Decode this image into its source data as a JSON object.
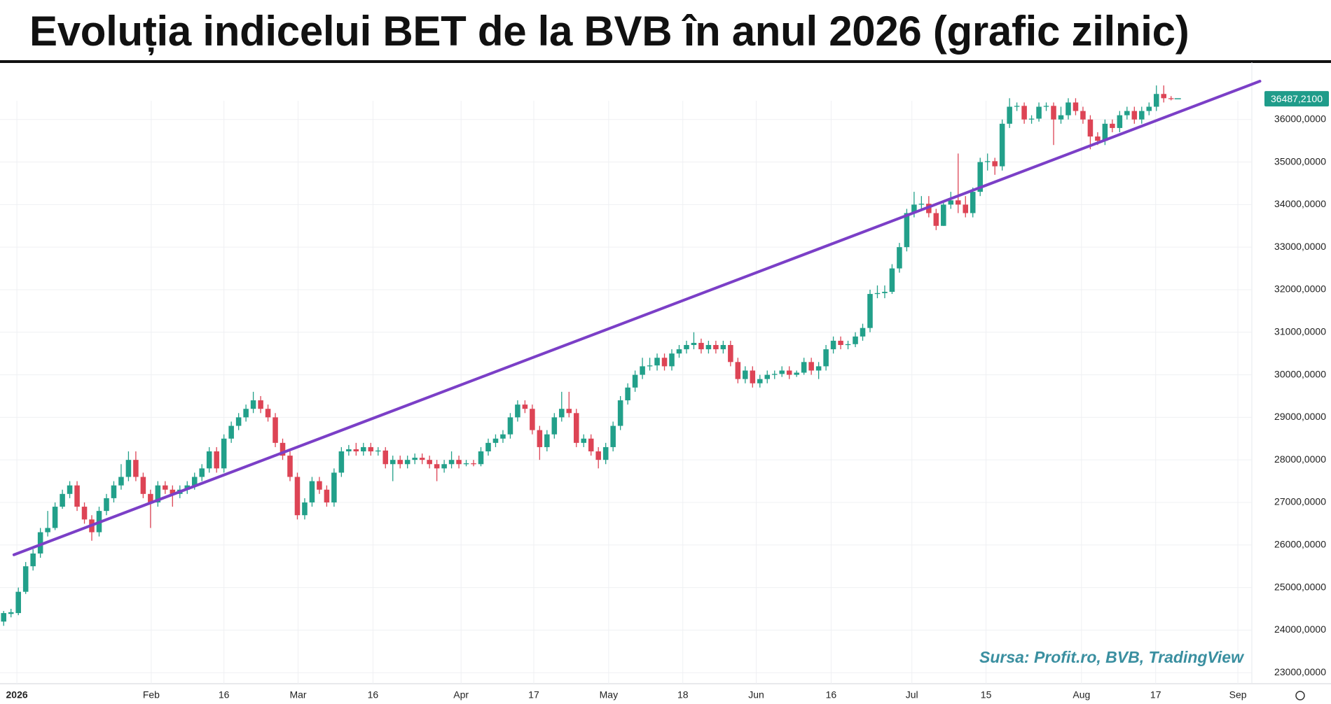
{
  "chart_data": {
    "type": "candlestick",
    "title": "Evoluția indicelui BET de la BVB în anul 2026 (grafic zilnic)",
    "annotation": "Sursa: Profit.ro, BVB, TradingView",
    "up_color": "#22a08a",
    "down_color": "#dd4455",
    "grid": true,
    "xlim": [
      -0.5,
      170
    ],
    "xticks": [
      {
        "value": 1.8,
        "label": "2026"
      },
      {
        "value": 20.1,
        "label": "Feb"
      },
      {
        "value": 30.0,
        "label": "16"
      },
      {
        "value": 40.1,
        "label": "Mar"
      },
      {
        "value": 50.3,
        "label": "16"
      },
      {
        "value": 62.3,
        "label": "Apr"
      },
      {
        "value": 72.2,
        "label": "17"
      },
      {
        "value": 82.4,
        "label": "May"
      },
      {
        "value": 92.5,
        "label": "18"
      },
      {
        "value": 102.5,
        "label": "Jun"
      },
      {
        "value": 112.7,
        "label": "16"
      },
      {
        "value": 123.7,
        "label": "Jul"
      },
      {
        "value": 133.8,
        "label": "15"
      },
      {
        "value": 146.8,
        "label": "Aug"
      },
      {
        "value": 156.9,
        "label": "17"
      },
      {
        "value": 168.1,
        "label": "Sep"
      }
    ],
    "ylim": [
      22740,
      37180
    ],
    "yticks": [
      {
        "value": 23000,
        "label": "23000,0000"
      },
      {
        "value": 24000,
        "label": "24000,0000"
      },
      {
        "value": 25000,
        "label": "25000,0000"
      },
      {
        "value": 26000,
        "label": "26000,0000"
      },
      {
        "value": 27000,
        "label": "27000,0000"
      },
      {
        "value": 28000,
        "label": "28000,0000"
      },
      {
        "value": 29000,
        "label": "29000,0000"
      },
      {
        "value": 30000,
        "label": "30000,0000"
      },
      {
        "value": 31000,
        "label": "31000,0000"
      },
      {
        "value": 32000,
        "label": "32000,0000"
      },
      {
        "value": 33000,
        "label": "33000,0000"
      },
      {
        "value": 34000,
        "label": "34000,0000"
      },
      {
        "value": 35000,
        "label": "35000,0000"
      },
      {
        "value": 36000,
        "label": "36000,0000"
      }
    ],
    "last_price_label": "36487,2100",
    "last_price_color": "#1f9c8a",
    "trend_line": {
      "x": [
        1.4,
        171.1
      ],
      "y": [
        25770,
        36900
      ],
      "color": "#7b3fc7"
    },
    "open": [
      24200,
      24380,
      24400,
      24900,
      25500,
      25800,
      26300,
      26400,
      26900,
      27200,
      27400,
      26900,
      26600,
      26300,
      26800,
      27100,
      27400,
      27600,
      28000,
      27600,
      27200,
      27000,
      27400,
      27300,
      27200,
      27300,
      27400,
      27600,
      27800,
      28200,
      27800,
      28500,
      28800,
      29000,
      29200,
      29400,
      29200,
      29000,
      28400,
      28100,
      27600,
      26700,
      27000,
      27500,
      27300,
      27000,
      27700,
      28200,
      28250,
      28200,
      28300,
      28200,
      28220,
      27900,
      28000,
      27900,
      28000,
      28050,
      28000,
      27900,
      27800,
      27900,
      28000,
      27900,
      27920,
      27900,
      28200,
      28400,
      28500,
      28600,
      29000,
      29300,
      29200,
      28700,
      28300,
      28600,
      29000,
      29200,
      29100,
      28400,
      28500,
      28200,
      28000,
      28300,
      28800,
      29400,
      29700,
      30000,
      30200,
      30220,
      30400,
      30200,
      30500,
      30600,
      30700,
      30750,
      30600,
      30700,
      30600,
      30700,
      30300,
      29900,
      30100,
      29800,
      29900,
      30000,
      30020,
      30100,
      30000,
      30050,
      30300,
      30100,
      30200,
      30600,
      30800,
      30700,
      30720,
      30900,
      31100,
      31900,
      31920,
      31950,
      32500,
      33000,
      33800,
      34000,
      34020,
      33800,
      33500,
      34000,
      34100,
      34000,
      33800,
      34300,
      35000,
      35020,
      34900,
      35900,
      36300,
      36320,
      36000,
      36020,
      36300,
      36320,
      36000,
      36100,
      36400,
      36200,
      36000,
      35600,
      35500,
      35900,
      35800,
      36100,
      36200,
      36000,
      36200,
      36300,
      36600,
      36500
    ],
    "high": [
      24450,
      24500,
      25000,
      25600,
      25900,
      26400,
      26800,
      27000,
      27300,
      27500,
      27500,
      27000,
      26700,
      26900,
      27200,
      27500,
      27900,
      28200,
      28200,
      27700,
      27300,
      27500,
      27500,
      27400,
      27400,
      27500,
      27700,
      27900,
      28300,
      28300,
      28600,
      28900,
      29100,
      29300,
      29600,
      29500,
      29300,
      29100,
      28500,
      28200,
      27700,
      27100,
      27600,
      27600,
      27400,
      27800,
      28300,
      28350,
      28400,
      28400,
      28400,
      28300,
      28300,
      28100,
      28100,
      28100,
      28150,
      28150,
      28100,
      28000,
      28000,
      28200,
      28100,
      28000,
      28000,
      28300,
      28500,
      28600,
      28700,
      29100,
      29400,
      29400,
      29300,
      28800,
      28700,
      29100,
      29600,
      29600,
      29200,
      28600,
      28600,
      28300,
      28400,
      28900,
      29500,
      29800,
      30100,
      30400,
      30400,
      30500,
      30500,
      30600,
      30700,
      30800,
      31000,
      30850,
      30800,
      30800,
      30800,
      30800,
      30400,
      30200,
      30200,
      30000,
      30100,
      30100,
      30200,
      30200,
      30100,
      30400,
      30400,
      30300,
      30700,
      30900,
      30900,
      30800,
      31000,
      31200,
      32000,
      32100,
      32100,
      32600,
      33100,
      33900,
      34300,
      34200,
      34200,
      33900,
      34100,
      34300,
      35200,
      34200,
      34400,
      35100,
      35200,
      35100,
      36000,
      36500,
      36400,
      36400,
      36100,
      36400,
      36400,
      36400,
      36300,
      36500,
      36500,
      36300,
      36100,
      35700,
      36000,
      36000,
      36200,
      36300,
      36300,
      36300,
      36400,
      36800,
      36800,
      36550
    ],
    "low": [
      24100,
      24300,
      24350,
      24850,
      25400,
      25700,
      26200,
      26350,
      26850,
      27100,
      26800,
      26500,
      26100,
      26200,
      26700,
      27000,
      27300,
      27500,
      27500,
      27100,
      26400,
      26900,
      27200,
      26900,
      27100,
      27200,
      27300,
      27500,
      27700,
      27700,
      27700,
      28400,
      28700,
      28900,
      29100,
      29100,
      28900,
      28300,
      28000,
      27500,
      26600,
      26600,
      26900,
      27200,
      26900,
      26900,
      27600,
      28100,
      28100,
      28100,
      28100,
      28100,
      27800,
      27500,
      27800,
      27800,
      27900,
      27900,
      27800,
      27500,
      27700,
      27800,
      27800,
      27850,
      27850,
      27850,
      28100,
      28300,
      28400,
      28500,
      28900,
      29100,
      28600,
      28000,
      28200,
      28500,
      28900,
      29000,
      28300,
      28300,
      28100,
      27800,
      27900,
      28200,
      28700,
      29300,
      29600,
      29900,
      30100,
      30100,
      30100,
      30100,
      30400,
      30500,
      30600,
      30500,
      30500,
      30500,
      30500,
      30200,
      29800,
      29800,
      29700,
      29700,
      29800,
      29900,
      29950,
      29900,
      29950,
      30000,
      30000,
      29900,
      30100,
      30500,
      30600,
      30600,
      30650,
      30800,
      31000,
      31800,
      31800,
      31900,
      32400,
      32900,
      33700,
      33900,
      33700,
      33400,
      33500,
      33900,
      33800,
      33700,
      33700,
      34200,
      34800,
      34700,
      34800,
      35800,
      36200,
      35900,
      35900,
      35950,
      36200,
      35400,
      35900,
      36000,
      36100,
      35900,
      35300,
      35400,
      35400,
      35700,
      35700,
      36000,
      35900,
      35900,
      36100,
      36200,
      36400,
      36450
    ],
    "close": [
      24400,
      24420,
      24900,
      25500,
      25800,
      26300,
      26400,
      26900,
      27200,
      27400,
      26900,
      26600,
      26300,
      26800,
      27100,
      27400,
      27600,
      28000,
      27600,
      27200,
      27000,
      27400,
      27300,
      27200,
      27300,
      27400,
      27600,
      27800,
      28200,
      27800,
      28500,
      28800,
      29000,
      29200,
      29400,
      29200,
      29000,
      28400,
      28100,
      27600,
      26700,
      27000,
      27500,
      27300,
      27000,
      27700,
      28200,
      28250,
      28200,
      28300,
      28200,
      28220,
      27900,
      28000,
      27900,
      28000,
      28050,
      28000,
      27900,
      27800,
      27900,
      28000,
      27900,
      27920,
      27900,
      28200,
      28400,
      28500,
      28600,
      29000,
      29300,
      29200,
      28700,
      28300,
      28600,
      29000,
      29200,
      29100,
      28400,
      28500,
      28200,
      28000,
      28300,
      28800,
      29400,
      29700,
      30000,
      30200,
      30220,
      30400,
      30200,
      30500,
      30600,
      30700,
      30750,
      30600,
      30700,
      30600,
      30700,
      30300,
      29900,
      30100,
      29800,
      29900,
      30000,
      30020,
      30100,
      30000,
      30050,
      30300,
      30100,
      30200,
      30600,
      30800,
      30700,
      30720,
      30900,
      31100,
      31900,
      31920,
      31950,
      32500,
      33000,
      33800,
      34000,
      34020,
      33800,
      33500,
      34000,
      34100,
      34000,
      33800,
      34300,
      35000,
      35020,
      34900,
      35900,
      36300,
      36320,
      36000,
      36020,
      36300,
      36320,
      36000,
      36100,
      36400,
      36200,
      36000,
      35600,
      35500,
      35900,
      35800,
      36100,
      36200,
      36000,
      36200,
      36300,
      36600,
      36500,
      36487.21
    ]
  }
}
